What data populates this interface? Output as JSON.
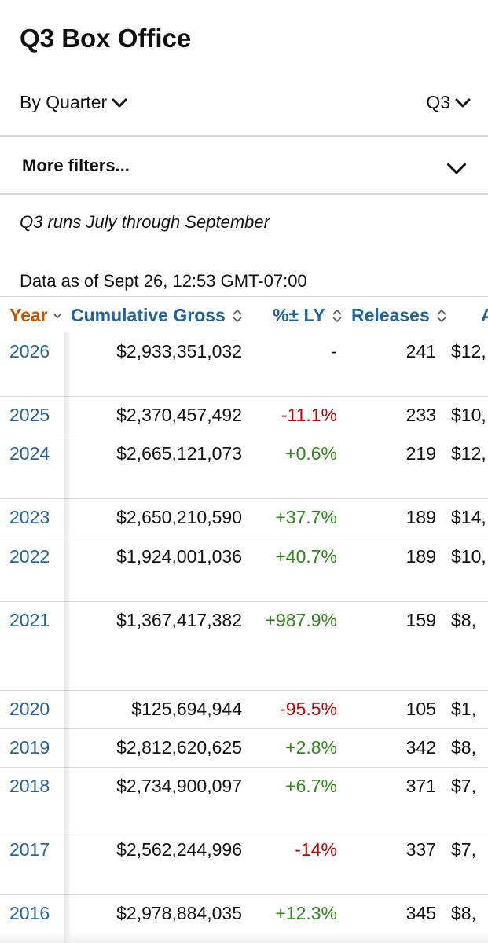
{
  "page": {
    "title": "Q3 Box Office"
  },
  "selectors": {
    "period_type": "By Quarter",
    "period": "Q3"
  },
  "filters": {
    "label": "More filters..."
  },
  "note": "Q3 runs July through September",
  "as_of": "Data as of Sept 26, 12:53 GMT-07:00",
  "table": {
    "headers": {
      "year": "Year",
      "gross": "Cumulative Gross",
      "pct": "%± LY",
      "releases": "Releases",
      "avg": "A"
    },
    "rows": [
      {
        "year": "2026",
        "gross": "$2,933,351,032",
        "pct": "-",
        "pct_kind": "neu",
        "releases": "241",
        "avg": "$12,"
      },
      {
        "year": "2025",
        "gross": "$2,370,457,492",
        "pct": "-11.1%",
        "pct_kind": "neg",
        "releases": "233",
        "avg": "$10,"
      },
      {
        "year": "2024",
        "gross": "$2,665,121,073",
        "pct": "+0.6%",
        "pct_kind": "pos",
        "releases": "219",
        "avg": "$12,"
      },
      {
        "year": "2023",
        "gross": "$2,650,210,590",
        "pct": "+37.7%",
        "pct_kind": "pos",
        "releases": "189",
        "avg": "$14,"
      },
      {
        "year": "2022",
        "gross": "$1,924,001,036",
        "pct": "+40.7%",
        "pct_kind": "pos",
        "releases": "189",
        "avg": "$10,"
      },
      {
        "year": "2021",
        "gross": "$1,367,417,382",
        "pct": "+987.9%",
        "pct_kind": "pos",
        "releases": "159",
        "avg": "$8,"
      },
      {
        "year": "2020",
        "gross": "$125,694,944",
        "pct": "-95.5%",
        "pct_kind": "neg",
        "releases": "105",
        "avg": "$1,"
      },
      {
        "year": "2019",
        "gross": "$2,812,620,625",
        "pct": "+2.8%",
        "pct_kind": "pos",
        "releases": "342",
        "avg": "$8,"
      },
      {
        "year": "2018",
        "gross": "$2,734,900,097",
        "pct": "+6.7%",
        "pct_kind": "pos",
        "releases": "371",
        "avg": "$7,"
      },
      {
        "year": "2017",
        "gross": "$2,562,244,996",
        "pct": "-14%",
        "pct_kind": "neg",
        "releases": "337",
        "avg": "$7,"
      },
      {
        "year": "2016",
        "gross": "$2,978,884,035",
        "pct": "+12.3%",
        "pct_kind": "pos",
        "releases": "345",
        "avg": "$8,"
      }
    ]
  }
}
